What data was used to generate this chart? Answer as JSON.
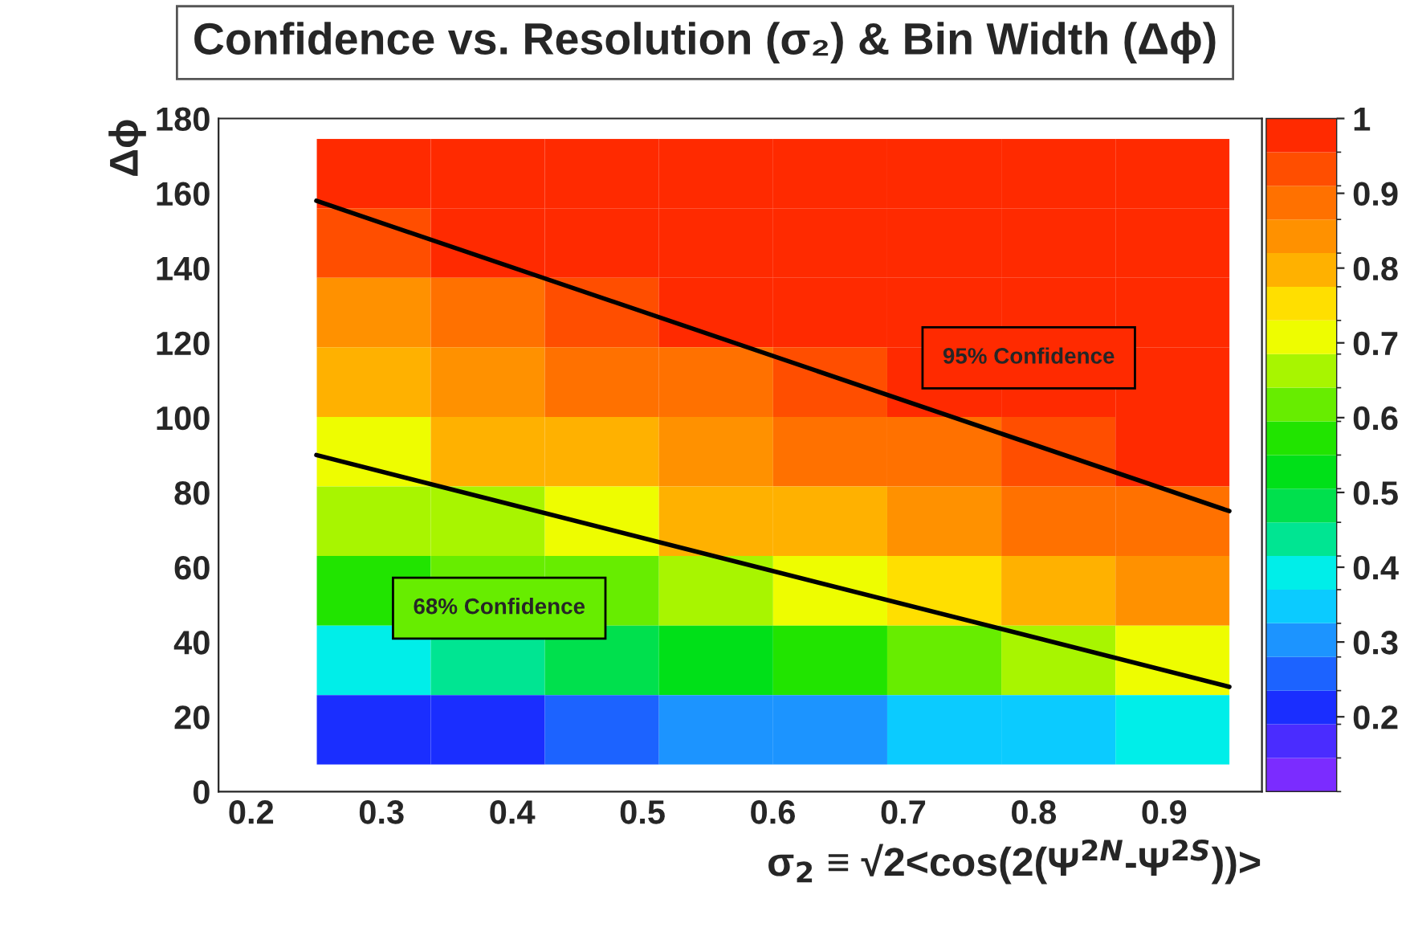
{
  "chart_data": [
    {
      "type": "heatmap",
      "categories": [
        null,
        null,
        null,
        null,
        null,
        null,
        null,
        null
      ],
      "y_categories": [
        null,
        null,
        null,
        null,
        null,
        null,
        null,
        null,
        null
      ],
      "cells": [
        [
          0.97,
          0.98,
          0.99,
          1.0,
          1.0,
          1.0,
          1.0,
          1.0
        ],
        [
          0.93,
          0.96,
          0.98,
          0.99,
          1.0,
          1.0,
          1.0,
          1.0
        ],
        [
          0.86,
          0.89,
          0.93,
          0.96,
          0.98,
          0.99,
          1.0,
          1.0
        ],
        [
          0.8,
          0.84,
          0.88,
          0.9,
          0.93,
          0.96,
          0.97,
          0.98
        ],
        [
          0.72,
          0.78,
          0.8,
          0.84,
          0.87,
          0.9,
          0.93,
          0.96
        ],
        [
          0.65,
          0.66,
          0.72,
          0.78,
          0.8,
          0.84,
          0.87,
          0.89
        ],
        [
          0.55,
          0.6,
          0.63,
          0.66,
          0.7,
          0.76,
          0.8,
          0.84
        ],
        [
          0.38,
          0.42,
          0.46,
          0.52,
          0.57,
          0.62,
          0.66,
          0.7
        ],
        [
          0.2,
          0.22,
          0.25,
          0.28,
          0.3,
          0.33,
          0.36,
          0.4
        ]
      ],
      "clim": [
        0.1,
        1
      ],
      "cticks": [
        0.2,
        0.3,
        0.4,
        0.5,
        0.6,
        0.7,
        0.8,
        0.9,
        1
      ],
      "annotations": [
        "95% Confidence",
        "68% Confidence"
      ]
    },
    {
      "type": "line",
      "title": "Confidence vs. Resolution (σ₂) & Bin Width (Δϕ)",
      "xlabel": "σ$_{2}$ ≡ √2<cos(2(Ψ$^{2N}$-Ψ$^{2S}$))>",
      "ylabel": "Δϕ",
      "xlim": [
        0.175,
        0.975
      ],
      "xticks": [
        0.2,
        0.3,
        0.4,
        0.5,
        0.6,
        0.7,
        0.8,
        0.9
      ],
      "ylim": [
        0,
        180
      ],
      "yticks": [
        0,
        20,
        40,
        60,
        80,
        100,
        120,
        140,
        160,
        180
      ],
      "x": [
        0.25,
        0.95
      ],
      "series": [
        {
          "color": "#000000",
          "values": [
            158,
            75
          ]
        },
        {
          "color": "#000000",
          "values": [
            90,
            28
          ]
        }
      ]
    }
  ]
}
